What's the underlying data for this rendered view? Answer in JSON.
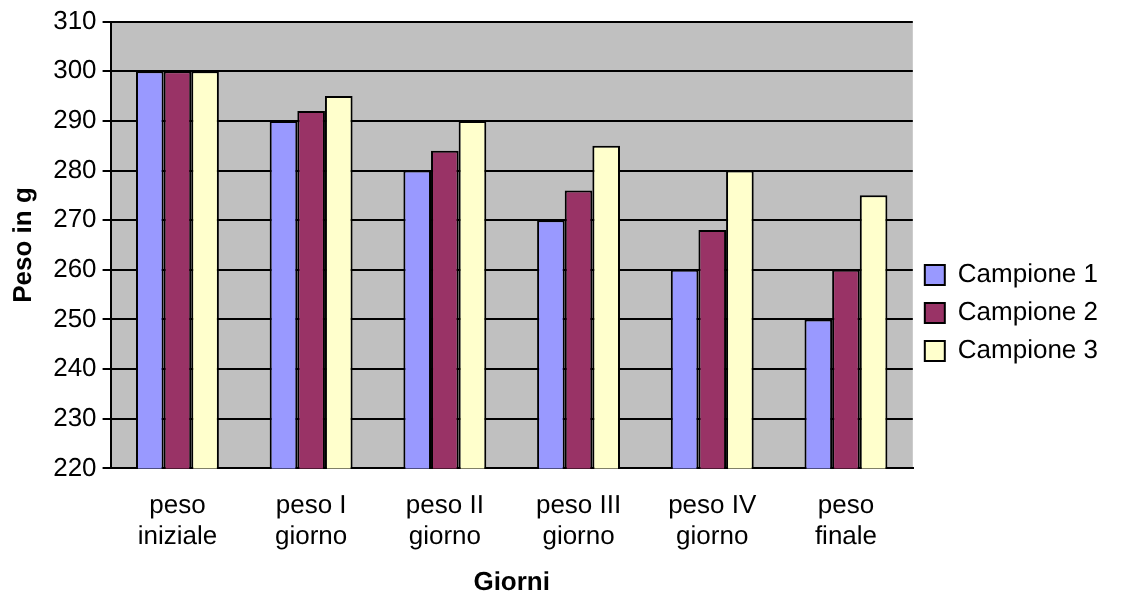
{
  "chart_data": {
    "type": "bar",
    "xlabel": "Giorni",
    "ylabel": "Peso in g",
    "categories": [
      "peso iniziale",
      "peso I giorno",
      "peso II giorno",
      "peso III giorno",
      "peso IV giorno",
      "peso finale"
    ],
    "series": [
      {
        "name": "Campione 1",
        "color": "#9999ff",
        "values": [
          300,
          290,
          280,
          270,
          260,
          250
        ]
      },
      {
        "name": "Campione 2",
        "color": "#993366",
        "values": [
          300,
          292,
          284,
          276,
          268,
          260
        ]
      },
      {
        "name": "Campione 3",
        "color": "#ffffcc",
        "values": [
          300,
          295,
          290,
          285,
          280,
          275
        ]
      }
    ],
    "ylim": [
      220,
      310
    ],
    "yticks": [
      220,
      230,
      240,
      250,
      260,
      270,
      280,
      290,
      300,
      310
    ],
    "grid": "y",
    "legend": "right"
  }
}
